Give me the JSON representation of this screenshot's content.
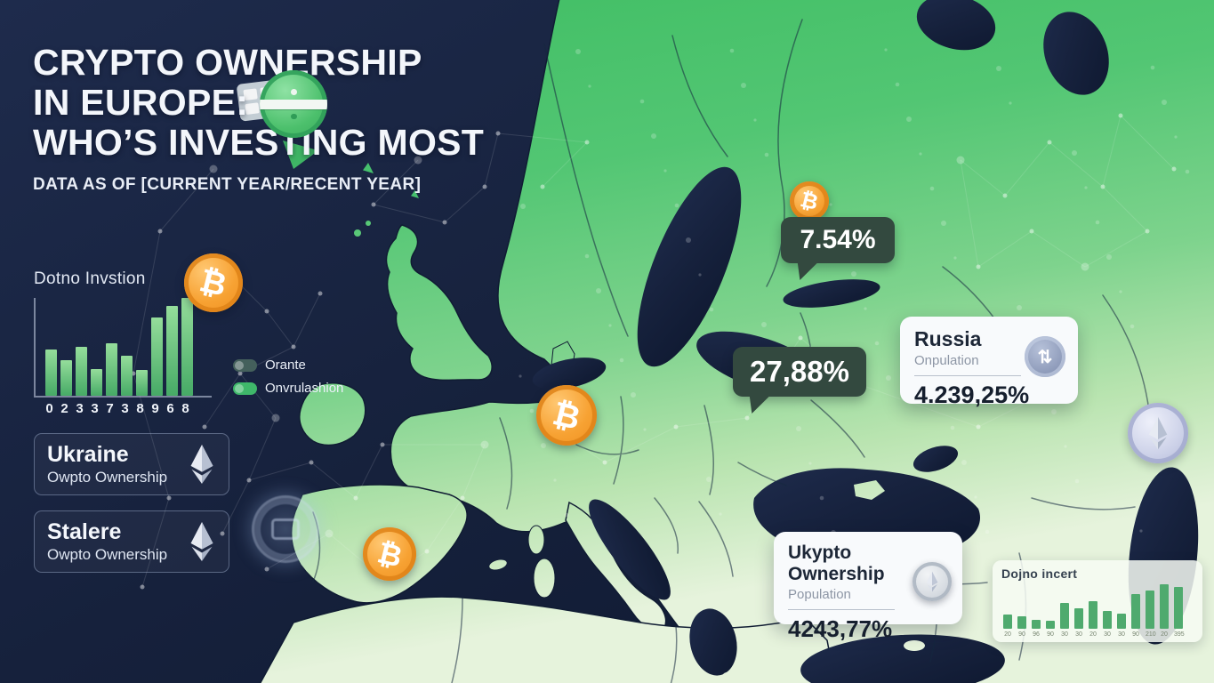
{
  "header": {
    "title_lines": [
      "CRYPTO OWNERSHIP",
      "IN EUROPE:",
      "WHO’S INVESTING MOST"
    ],
    "subtitle": "DATA AS OF [CURRENT YEAR/RECENT YEAR]"
  },
  "legend": {
    "items": [
      {
        "label": "Orante",
        "color": "#44605c"
      },
      {
        "label": "Onvrulashion",
        "color": "#3fb76a"
      }
    ]
  },
  "map": {
    "region": "Europe",
    "callout_badges": [
      {
        "value": "7.54%"
      },
      {
        "value": "27,88%"
      }
    ],
    "coin_markers": [
      "bitcoin-scandinavia",
      "bitcoin-central-europe",
      "bitcoin-spain",
      "bitcoin-left-panel",
      "ethereum-east",
      "faded-token-atlantic"
    ]
  },
  "country_cards": [
    {
      "name": "Ukraine",
      "subtitle": "Owpto Ownership",
      "icon": "ethereum"
    },
    {
      "name": "Stalere",
      "subtitle": "Owpto Ownership",
      "icon": "ethereum"
    }
  ],
  "stat_cards": [
    {
      "title": "Russia",
      "subtitle": "Onpulation",
      "value": "4.239,25%",
      "icon": "coin-swap"
    },
    {
      "title": "Ukypto Ownership",
      "subtitle": "Population",
      "value": "4243,77%",
      "icon": "ethereum-coin"
    }
  ],
  "chart_data": [
    {
      "type": "bar",
      "title": "Dotno Invstion",
      "categories": [
        "0",
        "2",
        "3",
        "3",
        "7",
        "3",
        "8",
        "9",
        "6",
        "8"
      ],
      "values": [
        47,
        36,
        50,
        27,
        54,
        41,
        26,
        80,
        92,
        100
      ],
      "xlabel": "",
      "ylabel": "",
      "ylim": [
        0,
        100
      ],
      "grid": false,
      "legend_position": "none"
    },
    {
      "type": "bar",
      "title": "Dojno incert",
      "categories": [
        "20",
        "90",
        "96",
        "90",
        "30",
        "30",
        "20",
        "30",
        "30",
        "90",
        "210",
        "20",
        "395"
      ],
      "values": [
        32,
        29,
        21,
        19,
        59,
        46,
        63,
        40,
        35,
        78,
        86,
        100,
        94
      ],
      "xlabel": "",
      "ylabel": "",
      "ylim": [
        0,
        100
      ],
      "grid": false,
      "legend_position": "none"
    }
  ],
  "colors": {
    "sea_navy": "#16213c",
    "land_green": "#4cc46e",
    "land_pale": "#e2f1d8",
    "bitcoin_orange": "#f7a233",
    "badge_green": "#33493f",
    "card_white": "#f8fafc",
    "accent_green": "#3fb76a",
    "eth_lavender": "#ccd1e8"
  }
}
